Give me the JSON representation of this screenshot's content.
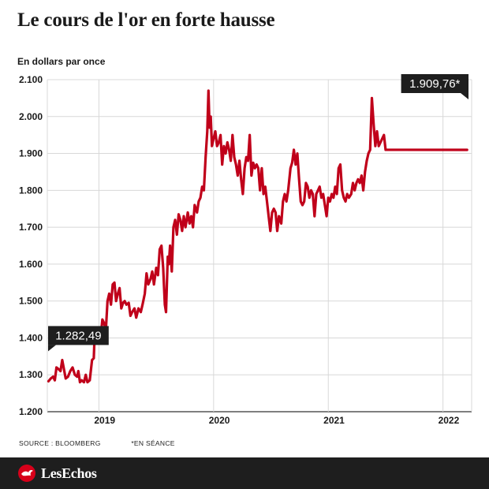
{
  "title": "Le cours de l'or en forte hausse",
  "unit_label": "En dollars par once",
  "source": "SOURCE : BLOOMBERG",
  "note": "*EN SÉANCE",
  "brand": "LesEchos",
  "colors": {
    "line": "#c0001a",
    "callout_bg": "#1e1e1e",
    "grid": "#d8d8d8",
    "brand_mark": "#d7001a"
  },
  "chart_data": {
    "type": "line",
    "x_unit": "year",
    "xlim": [
      2018.55,
      2022.25
    ],
    "ylim": [
      1200,
      2100
    ],
    "yticks": [
      1200,
      1300,
      1400,
      1500,
      1600,
      1700,
      1800,
      1900,
      2000,
      2100
    ],
    "ytick_labels": [
      "1.200",
      "1.300",
      "1.400",
      "1.500",
      "1.600",
      "1.700",
      "1.800",
      "1.900",
      "2.000",
      "2.100"
    ],
    "year_ticks": [
      2019.0,
      2020.0,
      2021.0,
      2022.0
    ],
    "year_labels": [
      {
        "label": "2019",
        "x": 2019.05
      },
      {
        "label": "2020",
        "x": 2020.05
      },
      {
        "label": "2021",
        "x": 2021.05
      },
      {
        "label": "2022",
        "x": 2022.05
      }
    ],
    "grid": true,
    "annotations": [
      {
        "text": "1.282,49",
        "x": 2018.56,
        "y": 1282.49,
        "position": "start"
      },
      {
        "text": "1.909,76*",
        "x": 2022.21,
        "y": 1909.76,
        "position": "end"
      }
    ],
    "series": [
      {
        "values": [
          [
            2018.56,
            1282.49
          ],
          [
            2018.58,
            1290
          ],
          [
            2018.6,
            1295
          ],
          [
            2018.615,
            1285
          ],
          [
            2018.63,
            1320
          ],
          [
            2018.65,
            1315
          ],
          [
            2018.665,
            1310
          ],
          [
            2018.68,
            1340
          ],
          [
            2018.695,
            1315
          ],
          [
            2018.71,
            1290
          ],
          [
            2018.73,
            1295
          ],
          [
            2018.75,
            1310
          ],
          [
            2018.77,
            1320
          ],
          [
            2018.79,
            1300
          ],
          [
            2018.81,
            1295
          ],
          [
            2018.82,
            1310
          ],
          [
            2018.835,
            1280
          ],
          [
            2018.85,
            1285
          ],
          [
            2018.87,
            1280
          ],
          [
            2018.885,
            1300
          ],
          [
            2018.9,
            1280
          ],
          [
            2018.92,
            1285
          ],
          [
            2018.94,
            1340
          ],
          [
            2018.955,
            1345
          ],
          [
            2018.965,
            1425
          ],
          [
            2018.98,
            1410
          ],
          [
            2019.0,
            1415
          ],
          [
            2019.015,
            1400
          ],
          [
            2019.03,
            1450
          ],
          [
            2019.045,
            1440
          ],
          [
            2019.06,
            1420
          ],
          [
            2019.075,
            1500
          ],
          [
            2019.09,
            1520
          ],
          [
            2019.105,
            1490
          ],
          [
            2019.12,
            1545
          ],
          [
            2019.135,
            1550
          ],
          [
            2019.15,
            1500
          ],
          [
            2019.165,
            1520
          ],
          [
            2019.18,
            1535
          ],
          [
            2019.195,
            1480
          ],
          [
            2019.21,
            1495
          ],
          [
            2019.225,
            1500
          ],
          [
            2019.24,
            1490
          ],
          [
            2019.26,
            1495
          ],
          [
            2019.275,
            1460
          ],
          [
            2019.29,
            1470
          ],
          [
            2019.31,
            1480
          ],
          [
            2019.325,
            1455
          ],
          [
            2019.345,
            1480
          ],
          [
            2019.365,
            1470
          ],
          [
            2019.38,
            1490
          ],
          [
            2019.4,
            1520
          ],
          [
            2019.415,
            1575
          ],
          [
            2019.43,
            1545
          ],
          [
            2019.45,
            1560
          ],
          [
            2019.465,
            1580
          ],
          [
            2019.48,
            1545
          ],
          [
            2019.5,
            1590
          ],
          [
            2019.515,
            1570
          ],
          [
            2019.53,
            1640
          ],
          [
            2019.545,
            1650
          ],
          [
            2019.56,
            1590
          ],
          [
            2019.575,
            1490
          ],
          [
            2019.585,
            1470
          ],
          [
            2019.6,
            1620
          ],
          [
            2019.61,
            1600
          ],
          [
            2019.62,
            1650
          ],
          [
            2019.635,
            1580
          ],
          [
            2019.65,
            1700
          ],
          [
            2019.665,
            1720
          ],
          [
            2019.68,
            1680
          ],
          [
            2019.695,
            1735
          ],
          [
            2019.71,
            1720
          ],
          [
            2019.725,
            1690
          ],
          [
            2019.74,
            1730
          ],
          [
            2019.755,
            1700
          ],
          [
            2019.775,
            1740
          ],
          [
            2019.79,
            1710
          ],
          [
            2019.805,
            1730
          ],
          [
            2019.82,
            1700
          ],
          [
            2019.835,
            1760
          ],
          [
            2019.855,
            1740
          ],
          [
            2019.87,
            1770
          ],
          [
            2019.885,
            1780
          ],
          [
            2019.9,
            1810
          ],
          [
            2019.915,
            1800
          ],
          [
            2019.93,
            1890
          ],
          [
            2019.945,
            1960
          ],
          [
            2019.955,
            2070
          ],
          [
            2019.965,
            1970
          ],
          [
            2019.975,
            2000
          ],
          [
            2019.985,
            1920
          ],
          [
            2020.0,
            1940
          ],
          [
            2020.015,
            1960
          ],
          [
            2020.03,
            1920
          ],
          [
            2020.045,
            1930
          ],
          [
            2020.06,
            1950
          ],
          [
            2020.075,
            1870
          ],
          [
            2020.09,
            1920
          ],
          [
            2020.105,
            1900
          ],
          [
            2020.12,
            1930
          ],
          [
            2020.135,
            1910
          ],
          [
            2020.15,
            1880
          ],
          [
            2020.165,
            1950
          ],
          [
            2020.18,
            1890
          ],
          [
            2020.195,
            1870
          ],
          [
            2020.21,
            1840
          ],
          [
            2020.225,
            1880
          ],
          [
            2020.24,
            1830
          ],
          [
            2020.255,
            1790
          ],
          [
            2020.27,
            1860
          ],
          [
            2020.285,
            1890
          ],
          [
            2020.3,
            1880
          ],
          [
            2020.315,
            1950
          ],
          [
            2020.33,
            1840
          ],
          [
            2020.345,
            1875
          ],
          [
            2020.36,
            1860
          ],
          [
            2020.375,
            1870
          ],
          [
            2020.39,
            1860
          ],
          [
            2020.405,
            1800
          ],
          [
            2020.42,
            1860
          ],
          [
            2020.435,
            1790
          ],
          [
            2020.45,
            1810
          ],
          [
            2020.465,
            1770
          ],
          [
            2020.48,
            1730
          ],
          [
            2020.495,
            1690
          ],
          [
            2020.51,
            1740
          ],
          [
            2020.525,
            1750
          ],
          [
            2020.54,
            1740
          ],
          [
            2020.555,
            1690
          ],
          [
            2020.57,
            1730
          ],
          [
            2020.59,
            1710
          ],
          [
            2020.605,
            1770
          ],
          [
            2020.62,
            1790
          ],
          [
            2020.635,
            1770
          ],
          [
            2020.65,
            1800
          ],
          [
            2020.67,
            1860
          ],
          [
            2020.685,
            1875
          ],
          [
            2020.7,
            1910
          ],
          [
            2020.715,
            1870
          ],
          [
            2020.73,
            1900
          ],
          [
            2020.745,
            1830
          ],
          [
            2020.76,
            1770
          ],
          [
            2020.775,
            1760
          ],
          [
            2020.79,
            1770
          ],
          [
            2020.805,
            1820
          ],
          [
            2020.82,
            1810
          ],
          [
            2020.835,
            1780
          ],
          [
            2020.85,
            1800
          ],
          [
            2020.865,
            1790
          ],
          [
            2020.88,
            1730
          ],
          [
            2020.895,
            1790
          ],
          [
            2020.91,
            1800
          ],
          [
            2020.925,
            1810
          ],
          [
            2020.94,
            1780
          ],
          [
            2020.955,
            1790
          ],
          [
            2020.97,
            1760
          ],
          [
            2020.985,
            1730
          ],
          [
            2021.0,
            1780
          ],
          [
            2021.015,
            1770
          ],
          [
            2021.03,
            1790
          ],
          [
            2021.045,
            1780
          ],
          [
            2021.06,
            1810
          ],
          [
            2021.075,
            1790
          ],
          [
            2021.09,
            1860
          ],
          [
            2021.105,
            1870
          ],
          [
            2021.12,
            1800
          ],
          [
            2021.135,
            1780
          ],
          [
            2021.15,
            1770
          ],
          [
            2021.165,
            1790
          ],
          [
            2021.18,
            1780
          ],
          [
            2021.2,
            1790
          ],
          [
            2021.215,
            1820
          ],
          [
            2021.23,
            1800
          ],
          [
            2021.245,
            1820
          ],
          [
            2021.26,
            1830
          ],
          [
            2021.275,
            1820
          ],
          [
            2021.29,
            1840
          ],
          [
            2021.305,
            1800
          ],
          [
            2021.32,
            1850
          ],
          [
            2021.335,
            1880
          ],
          [
            2021.35,
            1900
          ],
          [
            2021.365,
            1910
          ],
          [
            2021.38,
            2050
          ],
          [
            2021.395,
            1980
          ],
          [
            2021.41,
            1920
          ],
          [
            2021.425,
            1960
          ],
          [
            2021.44,
            1920
          ],
          [
            2021.455,
            1930
          ],
          [
            2021.47,
            1940
          ],
          [
            2021.485,
            1950
          ],
          [
            2021.5,
            1910
          ],
          [
            2022.21,
            1909.76
          ]
        ]
      }
    ]
  }
}
